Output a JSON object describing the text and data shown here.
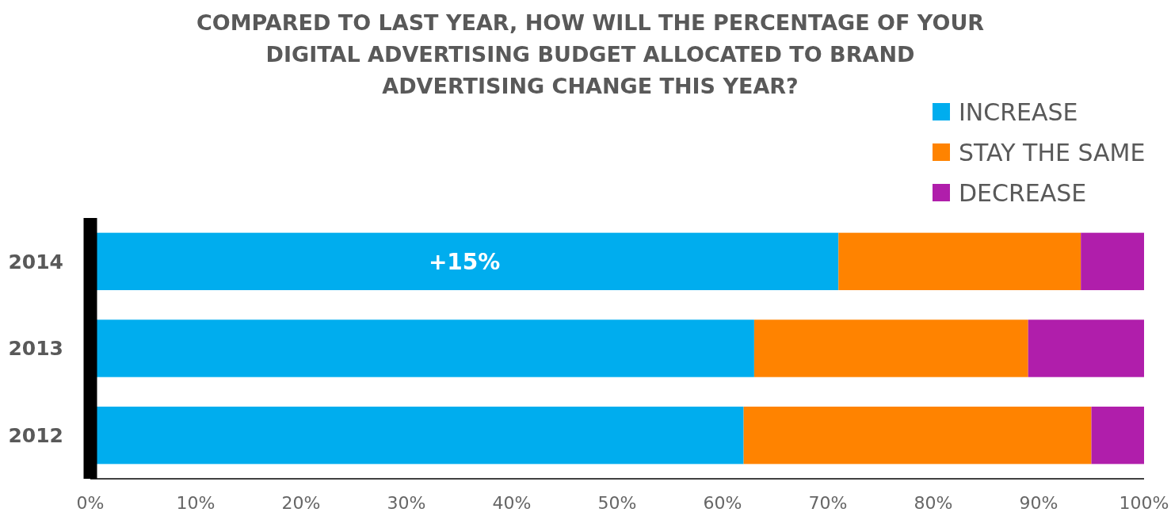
{
  "chart_data": {
    "type": "bar",
    "orientation": "horizontal",
    "stacked": true,
    "title": "COMPARED TO LAST YEAR, HOW WILL THE PERCENTAGE OF YOUR DIGITAL ADVERTISING BUDGET ALLOCATED TO BRAND ADVERTISING CHANGE THIS YEAR?",
    "categories": [
      "2014",
      "2013",
      "2012"
    ],
    "series": [
      {
        "name": "INCREASE",
        "color": "#00adee",
        "values": [
          71,
          63,
          62
        ]
      },
      {
        "name": "STAY THE SAME",
        "color": "#ff8300",
        "values": [
          23,
          26,
          33
        ]
      },
      {
        "name": "DECREASE",
        "color": "#b01eab",
        "values": [
          6,
          11,
          5
        ]
      }
    ],
    "xlim": [
      0,
      100
    ],
    "xticks": [
      {
        "value": 0,
        "label": "0%"
      },
      {
        "value": 10,
        "label": "10%"
      },
      {
        "value": 20,
        "label": "20%"
      },
      {
        "value": 30,
        "label": "30%"
      },
      {
        "value": 40,
        "label": "40%"
      },
      {
        "value": 50,
        "label": "50%"
      },
      {
        "value": 60,
        "label": "60%"
      },
      {
        "value": 70,
        "label": "70%"
      },
      {
        "value": 80,
        "label": "80%"
      },
      {
        "value": 90,
        "label": "90%"
      },
      {
        "value": 100,
        "label": "100%"
      }
    ],
    "grid": false,
    "legend": "top right",
    "annotations": [
      "+15%"
    ]
  }
}
